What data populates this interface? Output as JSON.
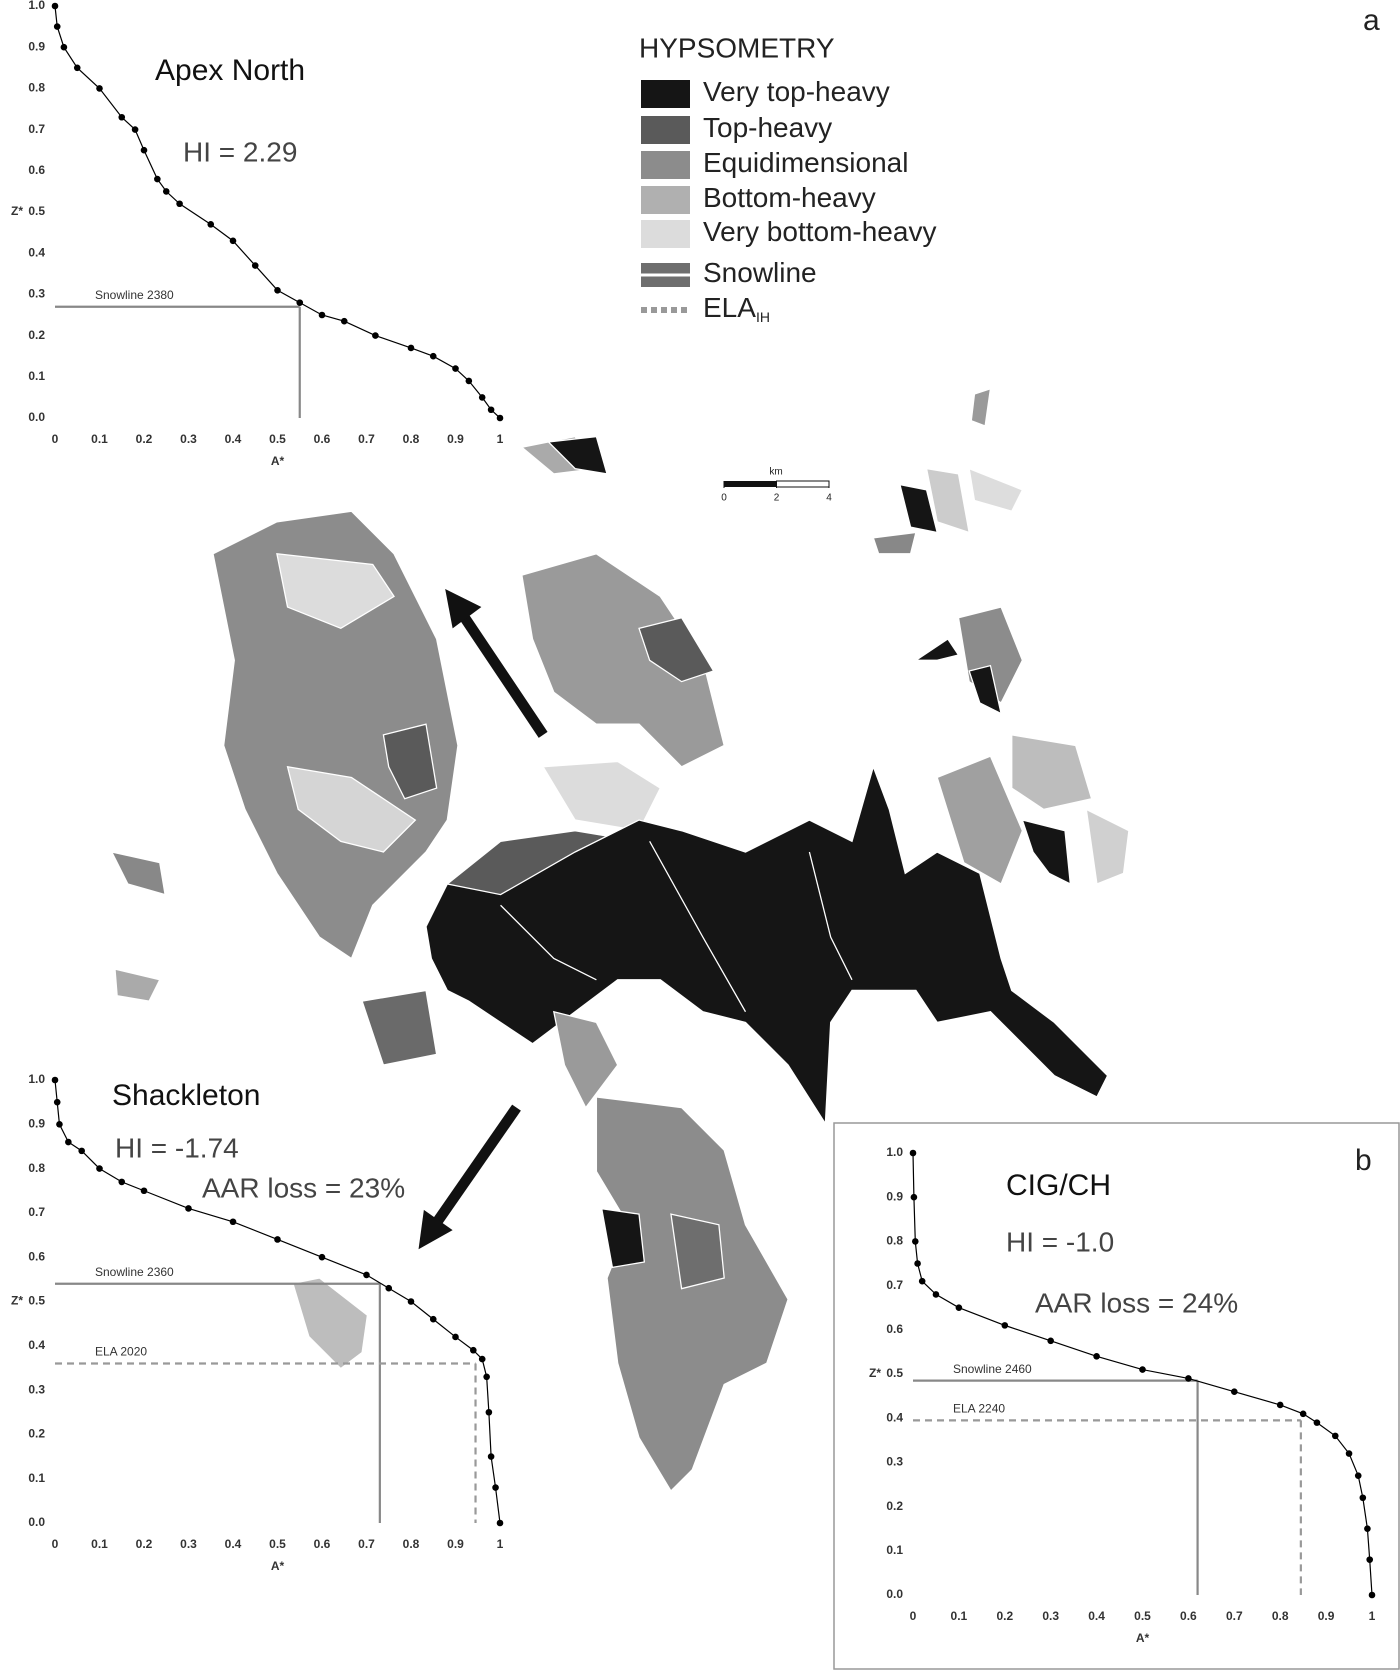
{
  "panel_labels": [
    "a",
    "b"
  ],
  "legend": {
    "title": "HYPSOMETRY",
    "items": [
      {
        "label": "Very top-heavy",
        "color": "#151515"
      },
      {
        "label": "Top-heavy",
        "color": "#5a5a5a"
      },
      {
        "label": "Equidimensional",
        "color": "#8c8c8c"
      },
      {
        "label": "Bottom-heavy",
        "color": "#b0b0b0"
      },
      {
        "label": "Very bottom-heavy",
        "color": "#dcdcdc"
      },
      {
        "label": "Snowline",
        "color": "#6e6e6e",
        "style": "line"
      },
      {
        "label": "ELA",
        "subscript": "IH",
        "color": "#999999",
        "style": "dashed"
      }
    ]
  },
  "scale_bar": {
    "unit": "km",
    "ticks": [
      0,
      2,
      4
    ]
  },
  "chart_data": [
    {
      "type": "line",
      "title": "Apex North",
      "annotations": [
        "HI = 2.29"
      ],
      "x_label": "A*",
      "y_label": "Z*",
      "color": "#000000",
      "x": [
        0,
        0.005,
        0.02,
        0.05,
        0.1,
        0.15,
        0.18,
        0.2,
        0.23,
        0.25,
        0.28,
        0.35,
        0.4,
        0.45,
        0.5,
        0.55,
        0.6,
        0.65,
        0.72,
        0.8,
        0.85,
        0.9,
        0.93,
        0.96,
        0.98,
        1
      ],
      "values": [
        1,
        0.95,
        0.9,
        0.85,
        0.8,
        0.73,
        0.7,
        0.65,
        0.58,
        0.55,
        0.52,
        0.47,
        0.43,
        0.37,
        0.31,
        0.28,
        0.25,
        0.235,
        0.2,
        0.17,
        0.15,
        0.12,
        0.09,
        0.05,
        0.02,
        0
      ],
      "reference_lines": [
        {
          "label": "Snowline  2380",
          "x": 0.55,
          "y": 0.27,
          "style": "solid"
        }
      ],
      "xlim": [
        0,
        1
      ],
      "ylim": [
        0,
        1
      ],
      "xticks": [
        0,
        0.1,
        0.2,
        0.3,
        0.4,
        0.5,
        0.6,
        0.7,
        0.8,
        0.9,
        1
      ],
      "yticks": [
        {
          "value": 0,
          "label": "0.0"
        },
        0.1,
        0.2,
        0.3,
        0.4,
        0.5,
        0.6,
        0.7,
        0.8,
        0.9,
        {
          "value": 1,
          "label": "1.0"
        }
      ]
    },
    {
      "type": "line",
      "title": "Shackleton",
      "annotations": [
        "HI = -1.74",
        "AAR loss = 23%"
      ],
      "x_label": "A*",
      "y_label": "Z*",
      "color": "#000000",
      "x": [
        0,
        0.005,
        0.01,
        0.03,
        0.06,
        0.1,
        0.15,
        0.2,
        0.3,
        0.4,
        0.5,
        0.6,
        0.7,
        0.75,
        0.8,
        0.85,
        0.9,
        0.94,
        0.96,
        0.97,
        0.975,
        0.98,
        0.99,
        1
      ],
      "values": [
        1,
        0.95,
        0.9,
        0.86,
        0.84,
        0.8,
        0.77,
        0.75,
        0.71,
        0.68,
        0.64,
        0.6,
        0.56,
        0.53,
        0.5,
        0.46,
        0.42,
        0.39,
        0.37,
        0.33,
        0.25,
        0.15,
        0.08,
        0
      ],
      "reference_lines": [
        {
          "label": "Snowline 2360",
          "x": 0.73,
          "y": 0.54,
          "style": "solid"
        },
        {
          "label": "ELA 2020",
          "x": 0.945,
          "y": 0.36,
          "style": "dashed"
        }
      ],
      "xlim": [
        0,
        1
      ],
      "ylim": [
        0,
        1
      ],
      "xticks": [
        0,
        0.1,
        0.2,
        0.3,
        0.4,
        0.5,
        0.6,
        0.7,
        0.8,
        0.9,
        1
      ],
      "yticks": [
        {
          "value": 0,
          "label": "0.0"
        },
        0.1,
        0.2,
        0.3,
        0.4,
        0.5,
        0.6,
        0.7,
        0.8,
        0.9,
        {
          "value": 1,
          "label": "1.0"
        }
      ]
    },
    {
      "type": "line",
      "title": "CIG/CH",
      "annotations": [
        "HI = -1.0",
        "AAR loss = 24%"
      ],
      "x_label": "A*",
      "y_label": "Z*",
      "color": "#000000",
      "x": [
        0,
        0.002,
        0.005,
        0.01,
        0.02,
        0.05,
        0.1,
        0.2,
        0.3,
        0.4,
        0.5,
        0.6,
        0.7,
        0.8,
        0.85,
        0.88,
        0.92,
        0.95,
        0.97,
        0.98,
        0.99,
        0.995,
        1
      ],
      "values": [
        1,
        0.9,
        0.8,
        0.75,
        0.71,
        0.68,
        0.65,
        0.61,
        0.575,
        0.54,
        0.51,
        0.49,
        0.46,
        0.43,
        0.41,
        0.39,
        0.36,
        0.32,
        0.27,
        0.22,
        0.15,
        0.08,
        0
      ],
      "reference_lines": [
        {
          "label": "Snowline  2460",
          "x": 0.62,
          "y": 0.485,
          "style": "solid"
        },
        {
          "label": "ELA  2240",
          "x": 0.845,
          "y": 0.395,
          "style": "dashed"
        }
      ],
      "xlim": [
        0,
        1
      ],
      "ylim": [
        0,
        1
      ],
      "xticks": [
        0,
        0.1,
        0.2,
        0.3,
        0.4,
        0.5,
        0.6,
        0.7,
        0.8,
        0.9,
        1
      ],
      "yticks": [
        {
          "value": 0,
          "label": "0.0"
        },
        0.1,
        0.2,
        0.3,
        0.4,
        0.5,
        0.6,
        0.7,
        0.8,
        0.9,
        {
          "value": 1,
          "label": "1.0"
        }
      ]
    }
  ]
}
